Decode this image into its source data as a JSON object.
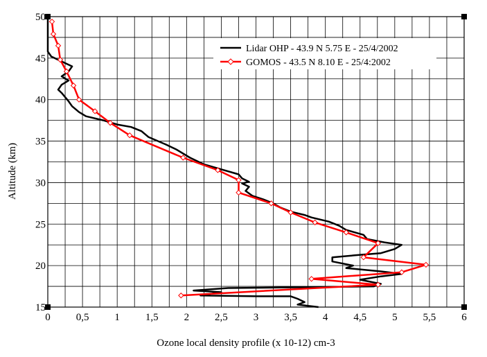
{
  "chart_data": {
    "type": "line",
    "title": "",
    "xlabel": "Ozone local density profile (x 10-12) cm-3",
    "ylabel": "Altitude (km)",
    "xlim": [
      0,
      6
    ],
    "ylim": [
      15,
      50
    ],
    "x_ticks": [
      "0",
      "0,5",
      "1",
      "1,5",
      "2",
      "2,5",
      "3",
      "3,5",
      "4",
      "4,5",
      "5",
      "5,5",
      "6"
    ],
    "y_ticks": [
      "15",
      "20",
      "25",
      "30",
      "35",
      "40",
      "45",
      "50"
    ],
    "grid": true,
    "legend_position": "top-right",
    "series": [
      {
        "name": "Lidar OHP - 43.9 N 5.75 E - 25/4/2002",
        "color": "#000000",
        "marker": "none",
        "points": [
          [
            3.9,
            15.0
          ],
          [
            3.6,
            15.3
          ],
          [
            3.7,
            15.6
          ],
          [
            3.6,
            16.0
          ],
          [
            3.5,
            16.3
          ],
          [
            3.0,
            16.3
          ],
          [
            2.2,
            16.4
          ],
          [
            2.5,
            16.8
          ],
          [
            2.1,
            17.0
          ],
          [
            2.6,
            17.3
          ],
          [
            3.8,
            17.4
          ],
          [
            4.7,
            17.5
          ],
          [
            4.8,
            17.8
          ],
          [
            4.5,
            18.3
          ],
          [
            4.8,
            18.7
          ],
          [
            5.1,
            19.0
          ],
          [
            4.8,
            19.3
          ],
          [
            4.3,
            19.7
          ],
          [
            4.4,
            20.0
          ],
          [
            4.1,
            20.5
          ],
          [
            4.1,
            21.0
          ],
          [
            4.5,
            21.3
          ],
          [
            4.8,
            21.5
          ],
          [
            5.0,
            22.0
          ],
          [
            5.1,
            22.5
          ],
          [
            4.85,
            22.8
          ],
          [
            4.6,
            23.2
          ],
          [
            4.55,
            23.7
          ],
          [
            4.3,
            24.3
          ],
          [
            4.2,
            24.8
          ],
          [
            4.05,
            25.3
          ],
          [
            3.8,
            25.8
          ],
          [
            3.7,
            26.1
          ],
          [
            3.5,
            26.5
          ],
          [
            3.35,
            27.0
          ],
          [
            3.25,
            27.5
          ],
          [
            3.1,
            28.0
          ],
          [
            2.95,
            28.4
          ],
          [
            2.85,
            29.0
          ],
          [
            2.9,
            29.5
          ],
          [
            2.8,
            29.9
          ],
          [
            2.9,
            30.1
          ],
          [
            2.8,
            30.5
          ],
          [
            2.75,
            31.0
          ],
          [
            2.5,
            31.6
          ],
          [
            2.25,
            32.2
          ],
          [
            2.05,
            33.0
          ],
          [
            1.85,
            34.0
          ],
          [
            1.7,
            34.6
          ],
          [
            1.45,
            35.5
          ],
          [
            1.35,
            36.2
          ],
          [
            1.2,
            36.7
          ],
          [
            1.0,
            37.0
          ],
          [
            0.8,
            37.5
          ],
          [
            0.55,
            38.0
          ],
          [
            0.45,
            38.5
          ],
          [
            0.35,
            39.2
          ],
          [
            0.3,
            39.8
          ],
          [
            0.25,
            40.3
          ],
          [
            0.2,
            40.8
          ],
          [
            0.15,
            41.2
          ],
          [
            0.2,
            41.8
          ],
          [
            0.3,
            42.3
          ],
          [
            0.2,
            42.8
          ],
          [
            0.3,
            43.4
          ],
          [
            0.35,
            44.0
          ],
          [
            0.25,
            44.4
          ],
          [
            0.15,
            44.8
          ],
          [
            0.05,
            45.2
          ],
          [
            0.0,
            45.8
          ],
          [
            0.0,
            47.0
          ],
          [
            0.0,
            50.0
          ]
        ]
      },
      {
        "name": "GOMOS - 43.5 N 8.10 E - 25/4:2002",
        "color": "#ff0000",
        "marker": "diamond",
        "points": [
          [
            1.92,
            16.4
          ],
          [
            4.76,
            17.7
          ],
          [
            3.8,
            18.4
          ],
          [
            5.1,
            19.2
          ],
          [
            5.45,
            20.1
          ],
          [
            4.55,
            21.0
          ],
          [
            4.76,
            22.7
          ],
          [
            4.3,
            24.0
          ],
          [
            3.85,
            25.2
          ],
          [
            3.5,
            26.4
          ],
          [
            3.22,
            27.5
          ],
          [
            2.75,
            28.8
          ],
          [
            2.75,
            30.3
          ],
          [
            2.45,
            31.5
          ],
          [
            1.95,
            33.0
          ],
          [
            1.18,
            35.7
          ],
          [
            0.9,
            37.2
          ],
          [
            0.68,
            38.6
          ],
          [
            0.45,
            40.0
          ],
          [
            0.37,
            41.7
          ],
          [
            0.27,
            43.4
          ],
          [
            0.18,
            44.8
          ],
          [
            0.15,
            46.5
          ],
          [
            0.08,
            47.9
          ],
          [
            0.06,
            49.4
          ]
        ]
      }
    ]
  }
}
